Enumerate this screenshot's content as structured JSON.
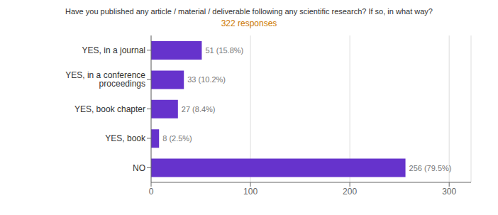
{
  "chart_data": {
    "type": "bar",
    "orientation": "horizontal",
    "title": "Have you published any article / material / deliverable following any scientific research? If so, in what way?",
    "subtitle": "322 responses",
    "categories": [
      "NO",
      "YES, book",
      "YES, book chapter",
      "YES, in a conference proceedings",
      "YES, in a journal"
    ],
    "values": [
      256,
      8,
      27,
      33,
      51
    ],
    "value_labels": [
      "256 (79.5%)",
      "8 (2.5%)",
      "27 (8.4%)",
      "33 (10.2%)",
      "51 (15.8%)"
    ],
    "data_labels": true,
    "color": "#6633cc",
    "xlim": [
      0,
      322
    ],
    "xticks": [
      0,
      100,
      200,
      300
    ],
    "grid": true
  }
}
